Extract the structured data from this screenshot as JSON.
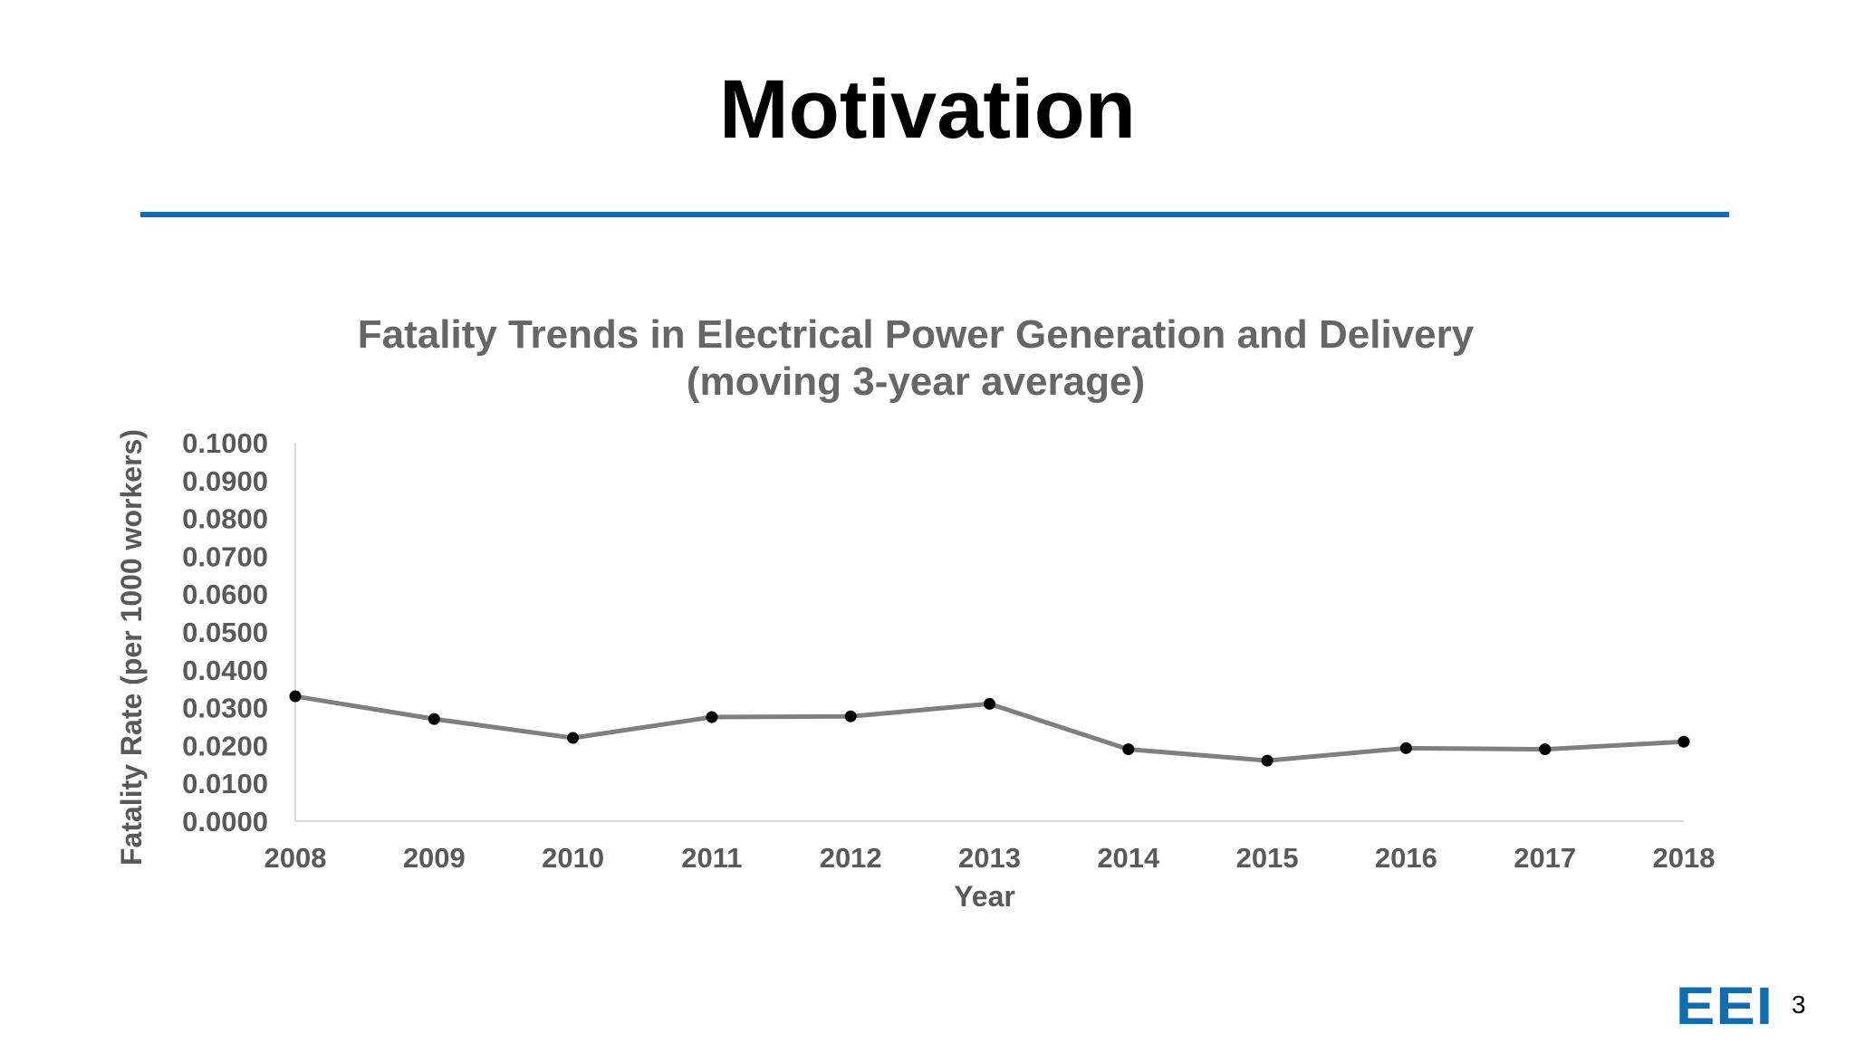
{
  "slide": {
    "title": "Motivation",
    "accent_color": "#0f6eb3",
    "logo_text": "EEI",
    "page_number": "3"
  },
  "chart_data": {
    "type": "line",
    "title": "Fatality Trends in Electrical Power Generation and Delivery",
    "subtitle": "(moving 3-year average)",
    "xlabel": "Year",
    "ylabel": "Fatality Rate (per 1000 workers)",
    "categories": [
      "2008",
      "2009",
      "2010",
      "2011",
      "2012",
      "2013",
      "2014",
      "2015",
      "2016",
      "2017",
      "2018"
    ],
    "series": [
      {
        "values": [
          0.033,
          0.027,
          0.022,
          0.0275,
          0.0277,
          0.031,
          0.019,
          0.016,
          0.0193,
          0.019,
          0.021
        ],
        "line_color": "#7f7f7f",
        "marker_color": "#000000"
      }
    ],
    "ylim": [
      0,
      0.1
    ],
    "yticks": [
      "0.0000",
      "0.0100",
      "0.0200",
      "0.0300",
      "0.0400",
      "0.0500",
      "0.0600",
      "0.0700",
      "0.0800",
      "0.0900",
      "0.1000"
    ],
    "grid": false,
    "legend": "none"
  }
}
